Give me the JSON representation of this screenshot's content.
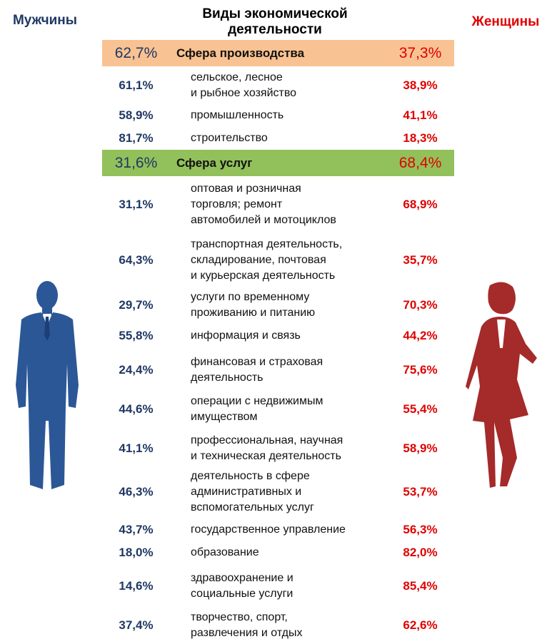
{
  "header": {
    "men_label": "Мужчины",
    "women_label": "Женщины",
    "title": "Виды экономической деятельности"
  },
  "colors": {
    "men": "#1f3864",
    "women": "#e00000",
    "production_band": "#f9c292",
    "services_band": "#92c05a",
    "man_figure": "#2b5797",
    "woman_figure": "#a52a2a"
  },
  "icons": [
    "man-silhouette-icon",
    "woman-silhouette-icon"
  ],
  "chart_data": {
    "type": "table",
    "title": "Виды экономической деятельности",
    "columns": [
      "Мужчины",
      "Виды экономической деятельности",
      "Женщины"
    ],
    "rows": [
      {
        "kind": "sector",
        "category": "Сфера производства",
        "men": "62,7%",
        "women": "37,3%"
      },
      {
        "kind": "item",
        "category": "сельское, лесное\nи рыбное хозяйство",
        "men": "61,1%",
        "women": "38,9%"
      },
      {
        "kind": "item",
        "category": "промышленность",
        "men": "58,9%",
        "women": "41,1%"
      },
      {
        "kind": "item",
        "category": "строительство",
        "men": "81,7%",
        "women": "18,3%"
      },
      {
        "kind": "sector",
        "category": "Сфера услуг",
        "men": "31,6%",
        "women": "68,4%"
      },
      {
        "kind": "item",
        "category": "оптовая и розничная\nторговля; ремонт\nавтомобилей и мотоциклов",
        "men": "31,1%",
        "women": "68,9%"
      },
      {
        "kind": "item",
        "category": "транспортная деятельность,\nскладирование, почтовая\nи курьерская деятельность",
        "men": "64,3%",
        "women": "35,7%"
      },
      {
        "kind": "item",
        "category": "услуги по временному\nпроживанию и питанию",
        "men": "29,7%",
        "women": "70,3%"
      },
      {
        "kind": "item",
        "category": "информация и связь",
        "men": "55,8%",
        "women": "44,2%"
      },
      {
        "kind": "item",
        "category": "финансовая и страховая\nдеятельность",
        "men": "24,4%",
        "women": "75,6%"
      },
      {
        "kind": "item",
        "category": "операции с недвижимым\nимуществом",
        "men": "44,6%",
        "women": "55,4%"
      },
      {
        "kind": "item",
        "category": "профессиональная, научная\nи техническая деятельность",
        "men": "41,1%",
        "women": "58,9%"
      },
      {
        "kind": "item",
        "category": "деятельность в сфере\nадминистративных и\nвспомогательных услуг",
        "men": "46,3%",
        "women": "53,7%"
      },
      {
        "kind": "item",
        "category": "государственное управление",
        "men": "43,7%",
        "women": "56,3%"
      },
      {
        "kind": "item",
        "category": "образование",
        "men": "18,0%",
        "women": "82,0%"
      },
      {
        "kind": "item",
        "category": "здравоохранение и\nсоциальные услуги",
        "men": "14,6%",
        "women": "85,4%"
      },
      {
        "kind": "item",
        "category": "творчество, спорт,\nразвлечения и отдых",
        "men": "37,4%",
        "women": "62,6%"
      }
    ]
  }
}
